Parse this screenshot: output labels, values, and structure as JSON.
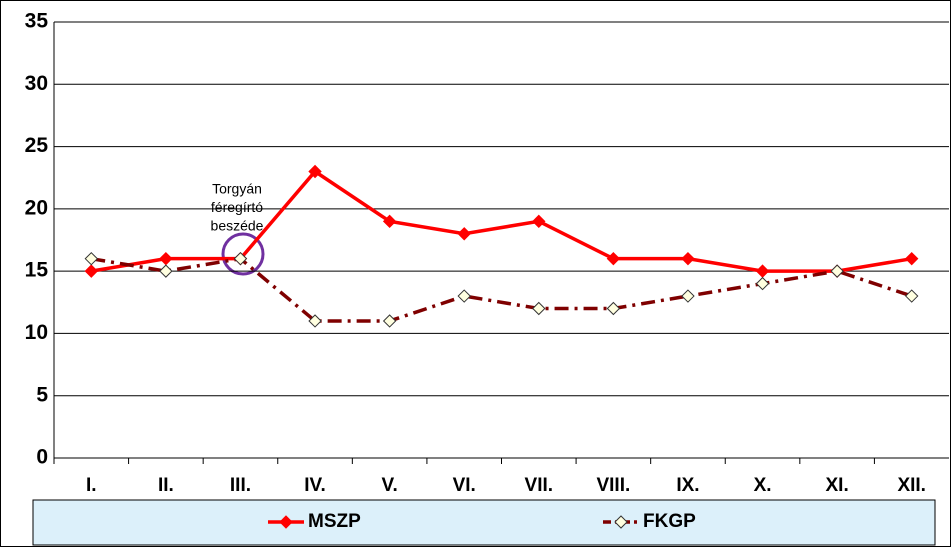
{
  "chart_data": {
    "type": "line",
    "categories": [
      "I.",
      "II.",
      "III.",
      "IV.",
      "V.",
      "VI.",
      "VII.",
      "VIII.",
      "IX.",
      "X.",
      "XI.",
      "XII."
    ],
    "series": [
      {
        "name": "MSZP",
        "color": "#ff0000",
        "values": [
          15,
          16,
          16,
          23,
          19,
          18,
          19,
          16,
          16,
          15,
          15,
          16
        ]
      },
      {
        "name": "FKGP",
        "color": "#7f0000",
        "values": [
          16,
          15,
          16,
          11,
          11,
          13,
          12,
          12,
          13,
          14,
          15,
          13
        ]
      }
    ],
    "ylim": [
      0,
      35
    ],
    "yticks": [
      0,
      5,
      10,
      15,
      20,
      25,
      30,
      35
    ],
    "grid": true,
    "legend": "bottom",
    "annotation": [
      "Torgyán",
      "féregírtó",
      "beszéde"
    ]
  }
}
